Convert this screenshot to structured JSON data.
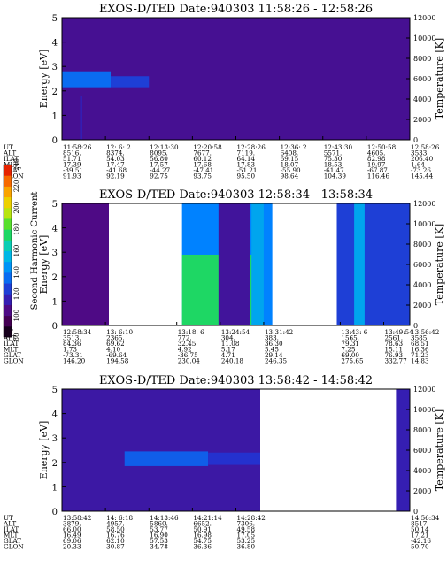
{
  "chart_data": [
    {
      "type": "heatmap",
      "title": "EXOS-D/TED   Date:940303   11:58:26 - 12:58:26",
      "ylabel": "Energy [eV]",
      "y2label": "Temperature [K]",
      "ylim": [
        0,
        5
      ],
      "y2lim": [
        0,
        12000
      ],
      "yticks": [
        "0",
        "1",
        "2",
        "3",
        "4",
        "5"
      ],
      "y2ticks": [
        "0",
        "2000",
        "4000",
        "6000",
        "8000",
        "10000",
        "12000"
      ],
      "row_labels": [
        "UT",
        "ALT",
        "ILAT",
        "MLT",
        "GLAT",
        "GLON"
      ],
      "columns": [
        [
          "11:58:26",
          "8516.",
          "51.71",
          "17.39",
          "-39.51",
          "91.93"
        ],
        [
          "12: 6: 2",
          "8374.",
          "54.03",
          "17.47",
          "-41.68",
          "92.19"
        ],
        [
          "12:13:30",
          "8095.",
          "56.80",
          "17.57",
          "-44.27",
          "92.75"
        ],
        [
          "12:20:58",
          "7677.",
          "60.12",
          "17.68",
          "-47.41",
          "93.75"
        ],
        [
          "12:28:26",
          "7119.",
          "64.14",
          "17.83",
          "-51.21",
          "95.50"
        ],
        [
          "12:36: 2",
          "6408.",
          "69.15",
          "18.07",
          "-55.90",
          "98.64"
        ],
        [
          "12:43:30",
          "5571.",
          "75.30",
          "18.53",
          "-61.47",
          "104.39"
        ],
        [
          "12:50:58",
          "4605.",
          "82.98",
          "19.97",
          "-67.87",
          "116.46"
        ],
        [
          "12:58:26",
          "3533.",
          "206.40",
          "1.64",
          "-73.26",
          "145.44"
        ]
      ],
      "bands": [
        {
          "x0": 0,
          "x1": 0.14,
          "y0": 2.15,
          "y1": 2.8,
          "value": 135
        },
        {
          "x0": 0.14,
          "x1": 0.25,
          "y0": 2.15,
          "y1": 2.6,
          "value": 125
        }
      ],
      "spikes": [
        {
          "x": 0.055,
          "y0": 0,
          "y1": 1.8,
          "value": 120
        },
        {
          "x": 0.895,
          "y0": 0,
          "y1": 2.5,
          "value": 108
        }
      ]
    },
    {
      "type": "heatmap",
      "title": "EXOS-D/TED   Date:940303   12:58:34 - 13:58:34",
      "ylabel": "Energy [eV]",
      "y2label": "Temperature [K]",
      "ylim": [
        0,
        5
      ],
      "y2lim": [
        0,
        12000
      ],
      "yticks": [
        "0",
        "1",
        "2",
        "3",
        "4",
        "5"
      ],
      "y2ticks": [
        "0",
        "2000",
        "4000",
        "6000",
        "8000",
        "10000",
        "12000"
      ],
      "row_labels": [
        "UT",
        "ALT",
        "ILAT",
        "MLT",
        "GLAT",
        "GLON"
      ],
      "columns": [
        [
          "12:58:34",
          "3513.",
          "84.36",
          "1.73",
          "-73.31",
          "146.20"
        ],
        [
          "13: 6:10",
          "2365.",
          "69.62",
          "4.10",
          "-69.64",
          "194.58"
        ],
        [
          "13:18: 6",
          "772.",
          "32.45",
          "4.92",
          "-36.75",
          "230.04"
        ],
        [
          "13:24:54",
          "304.",
          "11.08",
          "5.17",
          "4.71",
          "240.18"
        ],
        [
          "13:31:42",
          "383.",
          "36.30",
          "5.45",
          "29.14",
          "246.35"
        ],
        [
          "13:43: 6",
          "1565.",
          "79.31",
          "7.25",
          "69.00",
          "275.65"
        ],
        [
          "13:49:54",
          "2561.",
          "78.63",
          "15.11",
          "76.93",
          "332.77"
        ],
        [
          "13:56:42",
          "3585.",
          "68.51",
          "16.36",
          "71.23",
          "14.83"
        ]
      ],
      "bands": [
        {
          "x0": 0.0,
          "x1": 0.135,
          "y0": 0,
          "y1": 5,
          "value": 105
        },
        {
          "x0": 0.345,
          "x1": 0.605,
          "y0": 0,
          "y1": 5,
          "value": 140
        },
        {
          "x0": 0.345,
          "x1": 0.55,
          "y0": 0,
          "y1": 2.9,
          "value": 175
        },
        {
          "x0": 0.45,
          "x1": 0.54,
          "y0": 0,
          "y1": 5,
          "value": 110
        },
        {
          "x0": 0.545,
          "x1": 0.58,
          "y0": 0,
          "y1": 5,
          "value": 150
        },
        {
          "x0": 0.79,
          "x1": 1.0,
          "y0": 0,
          "y1": 5,
          "value": 125
        },
        {
          "x0": 0.84,
          "x1": 0.87,
          "y0": 0,
          "y1": 5,
          "value": 150
        }
      ],
      "gaps": [
        {
          "x0": 0.135,
          "x1": 0.345
        },
        {
          "x0": 0.605,
          "x1": 0.79
        }
      ],
      "colorbar": {
        "label": "Second Harmonic Current",
        "ticks": [
          "80",
          "100",
          "120",
          "140",
          "160",
          "180",
          "200",
          "220",
          "240"
        ],
        "range": [
          80,
          240
        ]
      }
    },
    {
      "type": "heatmap",
      "title": "EXOS-D/TED   Date:940303   13:58:42 - 14:58:42",
      "ylabel": "Energy [eV]",
      "y2label": "Temperature [K]",
      "ylim": [
        0,
        5
      ],
      "y2lim": [
        0,
        12000
      ],
      "yticks": [
        "0",
        "1",
        "2",
        "3",
        "4",
        "5"
      ],
      "y2ticks": [
        "0",
        "2000",
        "4000",
        "6000",
        "8000",
        "10000",
        "12000"
      ],
      "row_labels": [
        "UT",
        "ALT",
        "ILAT",
        "MLT",
        "GLAT",
        "GLON"
      ],
      "columns": [
        [
          "13:58:42",
          "3879.",
          "66.00",
          "16.49",
          "69.06",
          "20.33"
        ],
        [
          "14: 6:18",
          "4957.",
          "58.50",
          "16.76",
          "62.10",
          "30.87"
        ],
        [
          "14:13:46",
          "5860.",
          "53.77",
          "16.90",
          "57.53",
          "34.78"
        ],
        [
          "14:21:14",
          "6652.",
          "50.91",
          "16.98",
          "54.75",
          "36.36"
        ],
        [
          "14:28:42",
          "7306.",
          "49.58",
          "17.05",
          "53.25",
          "36.80"
        ],
        [
          "14:56:34",
          "8517.",
          "50.14",
          "17.21",
          "-42.16",
          "50.70"
        ]
      ],
      "bands": [
        {
          "x0": 0.0,
          "x1": 0.57,
          "y0": 0,
          "y1": 5,
          "value": 112
        },
        {
          "x0": 0.18,
          "x1": 0.42,
          "y0": 1.85,
          "y1": 2.45,
          "value": 132
        },
        {
          "x0": 0.42,
          "x1": 0.57,
          "y0": 1.9,
          "y1": 2.4,
          "value": 122
        },
        {
          "x0": 0.96,
          "x1": 1.0,
          "y0": 0,
          "y1": 5,
          "value": 115
        }
      ],
      "gaps": [
        {
          "x0": 0.57,
          "x1": 0.96
        }
      ]
    }
  ]
}
